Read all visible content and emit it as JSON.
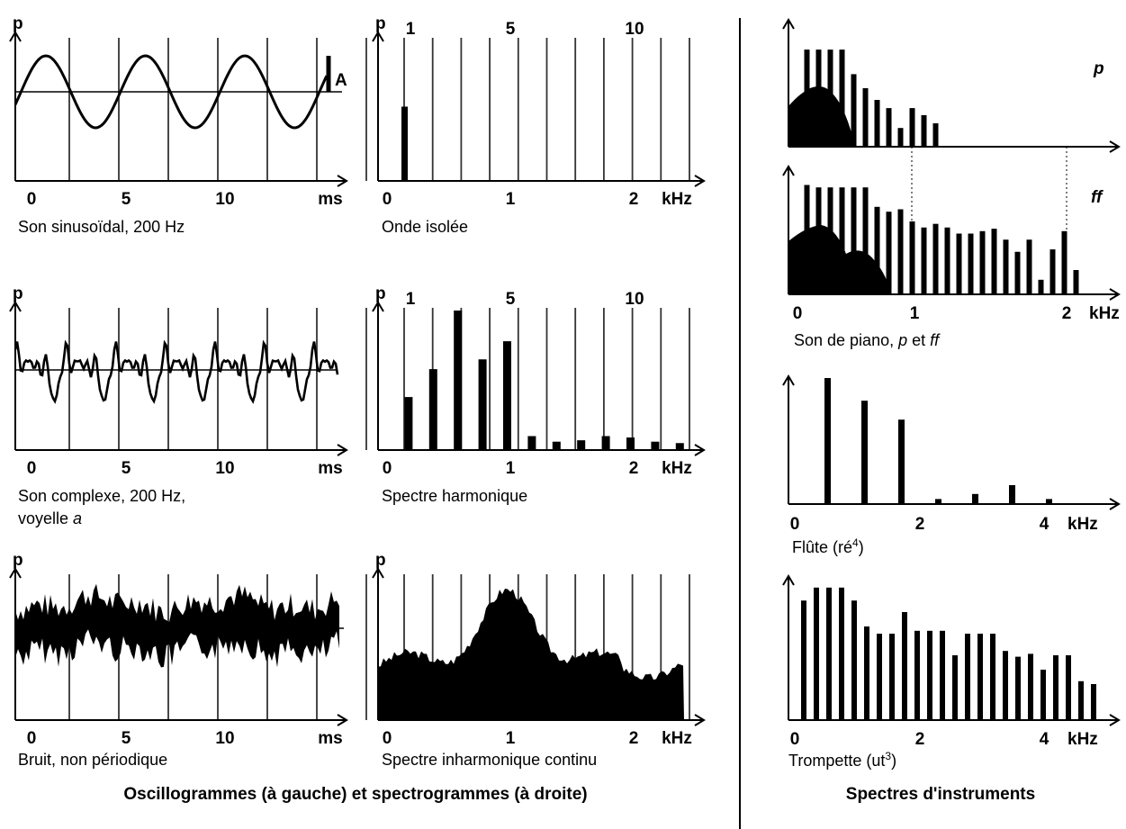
{
  "left_footer": "Oscillogrammes (à gauche) et spectrogrammes (à droite)",
  "right_footer": "Spectres d'instruments",
  "chart_data": [
    {
      "id": "sine",
      "type": "line",
      "ylabel": "p",
      "xunit": "ms",
      "xticks": [
        "0",
        "5",
        "10"
      ],
      "amplitude_label": "A",
      "caption": "Son sinusoïdal, 200 Hz",
      "frequency_hz": 200,
      "xlim_ms": [
        0,
        13
      ]
    },
    {
      "id": "isolated",
      "type": "bar",
      "ylabel": "p",
      "xunit": "kHz",
      "xticks": [
        "0",
        "1",
        "2"
      ],
      "harmonic_labels": [
        "1",
        "5",
        "10"
      ],
      "caption": "Onde isolée",
      "x_khz": [
        0.2
      ],
      "values": [
        0.55
      ]
    },
    {
      "id": "complex",
      "type": "line",
      "ylabel": "p",
      "xunit": "ms",
      "xticks": [
        "0",
        "5",
        "10"
      ],
      "caption": "Son complexe, 200 Hz,",
      "caption2": "voyelle ",
      "caption2_italic": "a"
    },
    {
      "id": "harmonic",
      "type": "bar",
      "ylabel": "p",
      "xunit": "kHz",
      "xticks": [
        "0",
        "1",
        "2"
      ],
      "harmonic_labels": [
        "1",
        "5",
        "10"
      ],
      "caption": "Spectre harmonique",
      "x_khz": [
        0.2,
        0.4,
        0.6,
        0.8,
        1.0,
        1.2,
        1.4,
        1.6,
        1.8,
        2.0,
        2.2,
        2.4
      ],
      "values": [
        0.38,
        0.58,
        1.0,
        0.65,
        0.78,
        0.1,
        0.06,
        0.07,
        0.1,
        0.09,
        0.06,
        0.05
      ]
    },
    {
      "id": "noise",
      "type": "area",
      "ylabel": "p",
      "xunit": "ms",
      "xticks": [
        "0",
        "5",
        "10"
      ],
      "caption": "Bruit, non périodique"
    },
    {
      "id": "continuous",
      "type": "area",
      "ylabel": "p",
      "xunit": "kHz",
      "xticks": [
        "0",
        "1",
        "2"
      ],
      "caption": "Spectre inharmonique continu"
    },
    {
      "id": "piano",
      "type": "bar",
      "xunit": "kHz",
      "xticks": [
        "0",
        "1",
        "2"
      ],
      "caption_prefix": "Son de piano, ",
      "caption_p": "p",
      "caption_mid": " et ",
      "caption_ff": "ff",
      "p_label": "p",
      "ff_label": "ff",
      "p_x_khz": [
        0.05,
        0.15,
        0.25,
        0.35,
        0.45,
        0.55,
        0.65,
        0.75,
        0.85,
        0.95,
        1.05,
        1.15
      ],
      "p_values": [
        0.83,
        0.83,
        0.83,
        0.83,
        0.62,
        0.5,
        0.4,
        0.33,
        0.16,
        0.33,
        0.27,
        0.2
      ],
      "ff_x_khz": [
        0.05,
        0.15,
        0.25,
        0.35,
        0.45,
        0.55,
        0.65,
        0.75,
        0.85,
        0.95,
        1.05,
        1.15,
        1.25,
        1.35,
        1.45,
        1.55,
        1.65,
        1.75,
        1.85,
        1.95,
        2.05,
        2.15,
        2.25,
        2.35
      ],
      "ff_values": [
        0.9,
        0.88,
        0.88,
        0.88,
        0.88,
        0.88,
        0.72,
        0.68,
        0.7,
        0.6,
        0.55,
        0.58,
        0.55,
        0.5,
        0.5,
        0.52,
        0.54,
        0.45,
        0.35,
        0.45,
        0.12,
        0.37,
        0.52,
        0.2
      ]
    },
    {
      "id": "flute",
      "type": "bar",
      "xunit": "kHz",
      "xticks": [
        "0",
        "2",
        "4"
      ],
      "caption": "Flûte (ré",
      "caption_sup": "4",
      "caption_end": ")",
      "x_khz": [
        0.6,
        1.2,
        1.8,
        2.4,
        3.0,
        3.6,
        4.2
      ],
      "values": [
        1.0,
        0.82,
        0.67,
        0.04,
        0.08,
        0.15,
        0.04
      ]
    },
    {
      "id": "trumpet",
      "type": "bar",
      "xunit": "kHz",
      "xticks": [
        "0",
        "2",
        "4"
      ],
      "caption": "Trompette (ut",
      "caption_sup": "3",
      "caption_end": ")",
      "x_khz": [
        0.15,
        0.35,
        0.55,
        0.75,
        0.95,
        1.15,
        1.35,
        1.55,
        1.75,
        1.95,
        2.15,
        2.35,
        2.55,
        2.75,
        2.95,
        3.15,
        3.35,
        3.55,
        3.75,
        3.95,
        4.15,
        4.35,
        4.55,
        4.75
      ],
      "values": [
        0.83,
        0.92,
        0.92,
        0.92,
        0.83,
        0.65,
        0.6,
        0.6,
        0.75,
        0.62,
        0.62,
        0.62,
        0.45,
        0.6,
        0.6,
        0.6,
        0.48,
        0.44,
        0.46,
        0.35,
        0.45,
        0.45,
        0.27,
        0.25
      ]
    }
  ]
}
